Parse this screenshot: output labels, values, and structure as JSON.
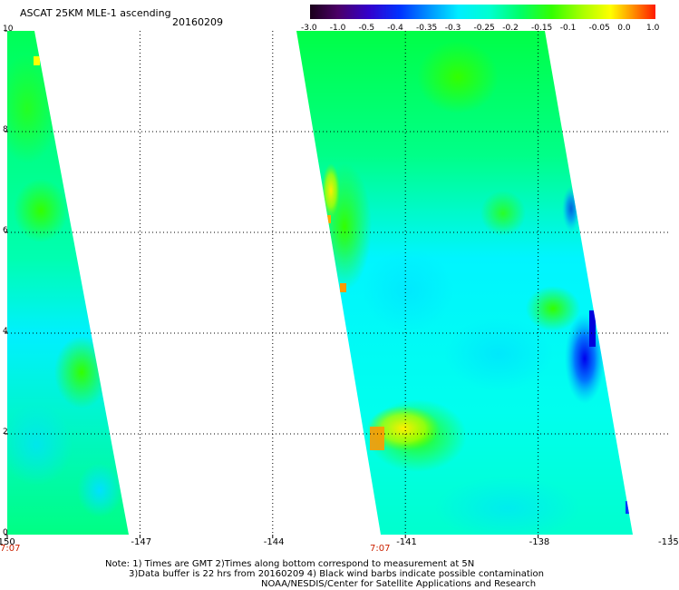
{
  "header": {
    "title": "ASCAT 25KM MLE-1 ascending",
    "date": "20160209"
  },
  "colorbar": {
    "labels": [
      "-3.0",
      "-1.0",
      "-0.5",
      "-0.4",
      "-0.35",
      "-0.3",
      "-0.25",
      "-0.2",
      "-0.15",
      "-0.1",
      "-0.05",
      "0.0",
      "1.0"
    ],
    "colors": [
      "#220022",
      "#5a007a",
      "#2200cc",
      "#0044ff",
      "#0099ff",
      "#00e0ff",
      "#00ffee",
      "#00ff80",
      "#33ff00",
      "#99ff00",
      "#ffff00",
      "#ff9900",
      "#ff2200"
    ]
  },
  "map": {
    "x_ticks": [
      "-150",
      "-147",
      "-144",
      "-141",
      "-138",
      "-135"
    ],
    "y_ticks": [
      "10",
      "8",
      "6",
      "4",
      "2",
      "0"
    ],
    "x_range": [
      -150,
      -135
    ],
    "y_range": [
      0,
      10
    ],
    "swath_times": [
      "7:07",
      "7:07"
    ],
    "swaths": [
      {
        "name": "left-swath",
        "lon_top_left": -150,
        "lon_top_right": -149.4,
        "lon_bottom_left": -150,
        "lon_bottom_right": -147.3
      },
      {
        "name": "right-swath",
        "lon_top_left": -142.9,
        "lon_top_right": -137.9,
        "lon_bottom_left": -141.6,
        "lon_bottom_right": -136.1
      }
    ]
  },
  "notes": {
    "line1": "Note: 1) Times are GMT 2)Times along bottom correspond to measurement at 5N",
    "line2": "3)Data buffer is 22 hrs from 20160209 4) Black wind barbs indicate possible contamination",
    "line3": "NOAA/NESDIS/Center for Satellite Applications and Research"
  }
}
